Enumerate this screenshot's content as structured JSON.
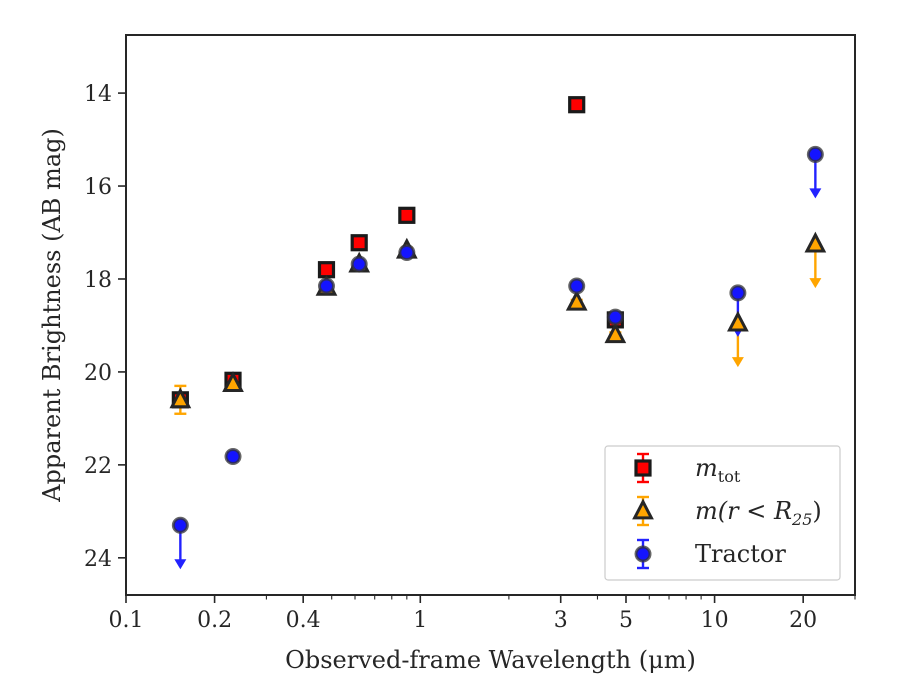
{
  "chart_data": {
    "type": "scatter",
    "title": "",
    "xlabel": "Observed-frame Wavelength (μm)",
    "ylabel": "Apparent Brightness (AB mag)",
    "xscale": "log",
    "xlim": [
      0.1,
      30
    ],
    "ylim": [
      24.8,
      12.75
    ],
    "y_inverted": true,
    "grid": false,
    "legend_position": "lower-right",
    "x_ticks": [
      {
        "value": 0.1,
        "label": "0.1"
      },
      {
        "value": 0.2,
        "label": "0.2"
      },
      {
        "value": 0.4,
        "label": "0.4"
      },
      {
        "value": 1,
        "label": "1"
      },
      {
        "value": 3,
        "label": "3"
      },
      {
        "value": 5,
        "label": "5"
      },
      {
        "value": 10,
        "label": "10"
      },
      {
        "value": 20,
        "label": "20"
      }
    ],
    "y_ticks": [
      {
        "value": 14,
        "label": "14"
      },
      {
        "value": 16,
        "label": "16"
      },
      {
        "value": 18,
        "label": "18"
      },
      {
        "value": 20,
        "label": "20"
      },
      {
        "value": 22,
        "label": "22"
      },
      {
        "value": 24,
        "label": "24"
      }
    ],
    "series": [
      {
        "name": "m_tot",
        "legend_main": "m",
        "legend_sub": "tot",
        "marker": "square",
        "color": "#ff0000",
        "edgecolor": "#1a1a1a",
        "errcolor": "#ff0000",
        "points": [
          {
            "x": 0.153,
            "y": 20.6,
            "err": 0.15
          },
          {
            "x": 0.231,
            "y": 20.18,
            "err": 0.1
          },
          {
            "x": 0.48,
            "y": 17.8,
            "err": 0.05
          },
          {
            "x": 0.62,
            "y": 17.22,
            "err": 0.05
          },
          {
            "x": 0.9,
            "y": 16.63,
            "err": 0.05
          },
          {
            "x": 3.4,
            "y": 14.25,
            "err": 0.05
          },
          {
            "x": 4.6,
            "y": 18.88,
            "err": 0.1
          }
        ]
      },
      {
        "name": "m(r < R_25)",
        "legend_main": "m(r < R",
        "legend_sub": "25",
        "legend_tail": ")",
        "marker": "triangle",
        "color": "#ffa500",
        "edgecolor": "#262626",
        "errcolor": "#ffa500",
        "points": [
          {
            "x": 0.153,
            "y": 20.6,
            "err": 0.3
          },
          {
            "x": 0.231,
            "y": 20.25,
            "err": 0.1
          },
          {
            "x": 0.48,
            "y": 18.18,
            "err": 0.05
          },
          {
            "x": 0.62,
            "y": 17.68,
            "err": 0.05
          },
          {
            "x": 0.9,
            "y": 17.38,
            "err": 0.05
          },
          {
            "x": 3.4,
            "y": 18.5,
            "err": 0.05
          },
          {
            "x": 4.6,
            "y": 19.2,
            "err": 0.05
          },
          {
            "x": 12,
            "y": 18.95,
            "upper_limit": true
          },
          {
            "x": 22,
            "y": 17.25,
            "upper_limit": true
          }
        ]
      },
      {
        "name": "Tractor",
        "legend_main": "Tractor",
        "marker": "circle",
        "color": "#1414ff",
        "edgecolor": "#333333",
        "errcolor": "#2222ff",
        "points": [
          {
            "x": 0.153,
            "y": 23.3,
            "upper_limit": true
          },
          {
            "x": 0.231,
            "y": 21.82,
            "err": 0.08
          },
          {
            "x": 0.48,
            "y": 18.15,
            "err": 0.05
          },
          {
            "x": 0.62,
            "y": 17.68,
            "err": 0.05
          },
          {
            "x": 0.9,
            "y": 17.43,
            "err": 0.05
          },
          {
            "x": 3.4,
            "y": 18.15,
            "err": 0.05
          },
          {
            "x": 4.6,
            "y": 18.82,
            "err": 0.05
          },
          {
            "x": 12,
            "y": 18.3,
            "upper_limit": true
          },
          {
            "x": 22,
            "y": 15.32,
            "upper_limit": true
          }
        ]
      }
    ]
  }
}
